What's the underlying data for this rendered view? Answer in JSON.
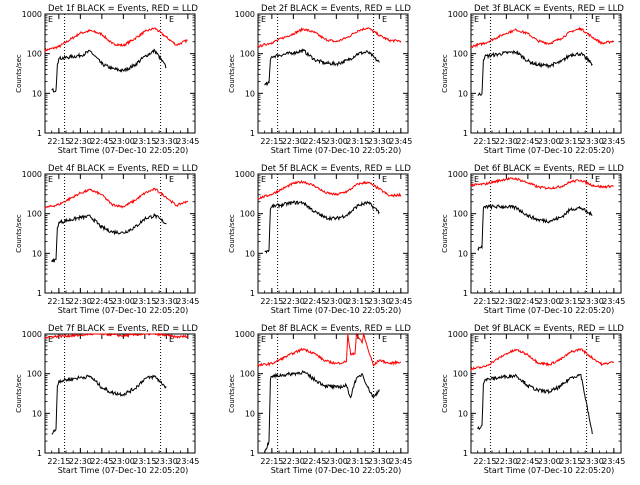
{
  "colors": {
    "events": "#000000",
    "lld": "#ff0000",
    "axis": "#000000",
    "background": "#ffffff"
  },
  "chart_data": {
    "type": "line",
    "layout": "3x3 grid of small multiples",
    "scale": {
      "y": "log"
    },
    "grid": false,
    "legend": "in-title",
    "ylabel": "Counts/sec",
    "xlabel": "Start Time (07-Dec-10 22:05:20)",
    "x_tick_labels": [
      "22:15",
      "22:30",
      "22:45",
      "23:00",
      "23:15",
      "23:30",
      "23:45"
    ],
    "x_ticks": [
      "22:15",
      "22:30",
      "22:45",
      "23:00",
      "23:15",
      "23:30",
      "23:45"
    ],
    "xlim": [
      "22:05:20",
      "23:50:00"
    ],
    "y_tick_labels": [
      "1",
      "10",
      "100",
      "1000"
    ],
    "y_ticks": [
      1,
      10,
      100,
      1000
    ],
    "ylim": [
      1,
      1000
    ],
    "vertical_dotted_lines": [
      "22:19",
      "23:26"
    ],
    "corner_marker": "E",
    "panels": [
      {
        "title": "Det 1f BLACK = Events, RED = LLD",
        "series": [
          {
            "color": "red",
            "x": [
              "22:05",
              "22:15",
              "22:30",
              "22:37",
              "22:45",
              "22:52",
              "23:00",
              "23:08",
              "23:15",
              "23:22",
              "23:30",
              "23:37",
              "23:45"
            ],
            "y": [
              120,
              150,
              330,
              380,
              310,
              180,
              160,
              240,
              360,
              440,
              260,
              165,
              220
            ]
          },
          {
            "color": "black",
            "x": [
              "22:10",
              "22:13",
              "22:14",
              "22:15",
              "22:30",
              "22:37",
              "22:45",
              "22:52",
              "23:00",
              "23:08",
              "23:15",
              "23:22",
              "23:30"
            ],
            "y": [
              12,
              12,
              55,
              75,
              90,
              115,
              55,
              42,
              37,
              52,
              85,
              120,
              45
            ]
          }
        ]
      },
      {
        "title": "Det 2f BLACK = Events, RED = LLD",
        "series": [
          {
            "color": "red",
            "x": [
              "22:05",
              "22:15",
              "22:30",
              "22:37",
              "22:45",
              "22:52",
              "23:00",
              "23:08",
              "23:15",
              "23:22",
              "23:30",
              "23:37",
              "23:45"
            ],
            "y": [
              150,
              190,
              320,
              420,
              340,
              230,
              200,
              260,
              380,
              450,
              290,
              215,
              210
            ]
          },
          {
            "color": "black",
            "x": [
              "22:10",
              "22:13",
              "22:14",
              "22:15",
              "22:30",
              "22:37",
              "22:45",
              "22:52",
              "23:00",
              "23:08",
              "23:15",
              "23:22",
              "23:30"
            ],
            "y": [
              16,
              18,
              70,
              85,
              105,
              120,
              70,
              58,
              55,
              68,
              100,
              110,
              60
            ]
          }
        ]
      },
      {
        "title": "Det 3f BLACK = Events, RED = LLD",
        "series": [
          {
            "color": "red",
            "x": [
              "22:05",
              "22:15",
              "22:30",
              "22:37",
              "22:45",
              "22:52",
              "23:00",
              "23:08",
              "23:15",
              "23:22",
              "23:30",
              "23:37",
              "23:45"
            ],
            "y": [
              150,
              185,
              330,
              400,
              320,
              210,
              180,
              240,
              360,
              430,
              260,
              180,
              210
            ]
          },
          {
            "color": "black",
            "x": [
              "22:10",
              "22:13",
              "22:14",
              "22:15",
              "22:30",
              "22:37",
              "22:45",
              "22:52",
              "23:00",
              "23:08",
              "23:15",
              "23:22",
              "23:30"
            ],
            "y": [
              9,
              10,
              70,
              85,
              105,
              110,
              65,
              52,
              50,
              62,
              95,
              100,
              55
            ]
          }
        ]
      },
      {
        "title": "Det 4f BLACK = Events, RED = LLD",
        "series": [
          {
            "color": "red",
            "x": [
              "22:05",
              "22:15",
              "22:30",
              "22:37",
              "22:45",
              "22:52",
              "23:00",
              "23:08",
              "23:15",
              "23:22",
              "23:30",
              "23:37",
              "23:45"
            ],
            "y": [
              140,
              170,
              330,
              400,
              300,
              170,
              150,
              215,
              330,
              420,
              260,
              160,
              210
            ]
          },
          {
            "color": "black",
            "x": [
              "22:10",
              "22:13",
              "22:14",
              "22:15",
              "22:30",
              "22:37",
              "22:45",
              "22:52",
              "23:00",
              "23:08",
              "23:15",
              "23:22",
              "23:30"
            ],
            "y": [
              6,
              7,
              45,
              60,
              80,
              85,
              45,
              35,
              33,
              45,
              75,
              90,
              55
            ]
          }
        ]
      },
      {
        "title": "Det 5f BLACK = Events, RED = LLD",
        "series": [
          {
            "color": "red",
            "x": [
              "22:05",
              "22:15",
              "22:30",
              "22:37",
              "22:45",
              "22:52",
              "23:00",
              "23:08",
              "23:15",
              "23:22",
              "23:30",
              "23:37",
              "23:45"
            ],
            "y": [
              240,
              310,
              580,
              640,
              500,
              340,
              300,
              370,
              560,
              620,
              420,
              280,
              300
            ]
          },
          {
            "color": "black",
            "x": [
              "22:10",
              "22:13",
              "22:14",
              "22:15",
              "22:30",
              "22:37",
              "22:45",
              "22:52",
              "23:00",
              "23:08",
              "23:15",
              "23:22",
              "23:30"
            ],
            "y": [
              11,
              12,
              130,
              150,
              190,
              190,
              110,
              80,
              75,
              95,
              160,
              190,
              110
            ]
          }
        ]
      },
      {
        "title": "Det 6f BLACK = Events, RED = LLD",
        "series": [
          {
            "color": "red",
            "x": [
              "22:05",
              "22:15",
              "22:30",
              "22:37",
              "22:45",
              "22:52",
              "23:00",
              "23:08",
              "23:15",
              "23:22",
              "23:30",
              "23:37",
              "23:45"
            ],
            "y": [
              520,
              560,
              750,
              760,
              600,
              470,
              440,
              480,
              640,
              700,
              520,
              470,
              500
            ]
          },
          {
            "color": "black",
            "x": [
              "22:10",
              "22:13",
              "22:14",
              "22:15",
              "22:30",
              "22:37",
              "22:45",
              "22:52",
              "23:00",
              "23:08",
              "23:15",
              "23:22",
              "23:30"
            ],
            "y": [
              13,
              14,
              140,
              150,
              150,
              140,
              90,
              70,
              65,
              80,
              130,
              140,
              90
            ]
          }
        ]
      },
      {
        "title": "Det 7f BLACK = Events, RED = LLD",
        "series": [
          {
            "color": "red",
            "x": [
              "22:05",
              "22:15",
              "22:30",
              "22:37",
              "22:45",
              "22:52",
              "23:00",
              "23:08",
              "23:15",
              "23:22",
              "23:30",
              "23:37",
              "23:45"
            ],
            "y": [
              820,
              880,
              930,
              1000,
              1000,
              960,
              900,
              960,
              1000,
              1000,
              920,
              840,
              880
            ]
          },
          {
            "color": "black",
            "x": [
              "22:10",
              "22:13",
              "22:14",
              "22:15",
              "22:30",
              "22:37",
              "22:45",
              "22:52",
              "23:00",
              "23:08",
              "23:15",
              "23:22",
              "23:30"
            ],
            "y": [
              3,
              4,
              50,
              65,
              80,
              85,
              45,
              33,
              30,
              42,
              75,
              85,
              45
            ]
          }
        ]
      },
      {
        "title": "Det 8f BLACK = Events, RED = LLD",
        "series": [
          {
            "color": "red",
            "x": [
              "22:05",
              "22:15",
              "22:30",
              "22:37",
              "22:45",
              "22:52",
              "23:00",
              "23:07",
              "23:08",
              "23:10",
              "23:13",
              "23:14",
              "23:18",
              "23:19",
              "23:22",
              "23:26",
              "23:30",
              "23:37",
              "23:45"
            ],
            "y": [
              160,
              180,
              330,
              420,
              320,
              210,
              180,
              200,
              1000,
              300,
              320,
              1000,
              600,
              1000,
              420,
              160,
              220,
              180,
              200
            ]
          },
          {
            "color": "black",
            "x": [
              "22:10",
              "22:13",
              "22:14",
              "22:15",
              "22:30",
              "22:37",
              "22:45",
              "22:52",
              "23:00",
              "23:07",
              "23:10",
              "23:13",
              "23:18",
              "23:22",
              "23:26",
              "23:30"
            ],
            "y": [
              1,
              2,
              70,
              85,
              100,
              110,
              70,
              50,
              45,
              50,
              25,
              65,
              100,
              45,
              25,
              40
            ]
          }
        ]
      },
      {
        "title": "Det 9f BLACK = Events, RED = LLD",
        "series": [
          {
            "color": "red",
            "x": [
              "22:05",
              "22:15",
              "22:30",
              "22:37",
              "22:45",
              "22:52",
              "23:00",
              "23:08",
              "23:15",
              "23:22",
              "23:30",
              "23:37",
              "23:45"
            ],
            "y": [
              130,
              150,
              320,
              400,
              300,
              190,
              170,
              230,
              350,
              420,
              250,
              170,
              200
            ]
          },
          {
            "color": "black",
            "x": [
              "22:10",
              "22:13",
              "22:14",
              "22:15",
              "22:30",
              "22:37",
              "22:45",
              "22:52",
              "23:00",
              "23:08",
              "23:15",
              "23:22",
              "23:30"
            ],
            "y": [
              4,
              5,
              55,
              70,
              85,
              90,
              50,
              38,
              35,
              48,
              80,
              95,
              3
            ]
          }
        ]
      }
    ]
  }
}
